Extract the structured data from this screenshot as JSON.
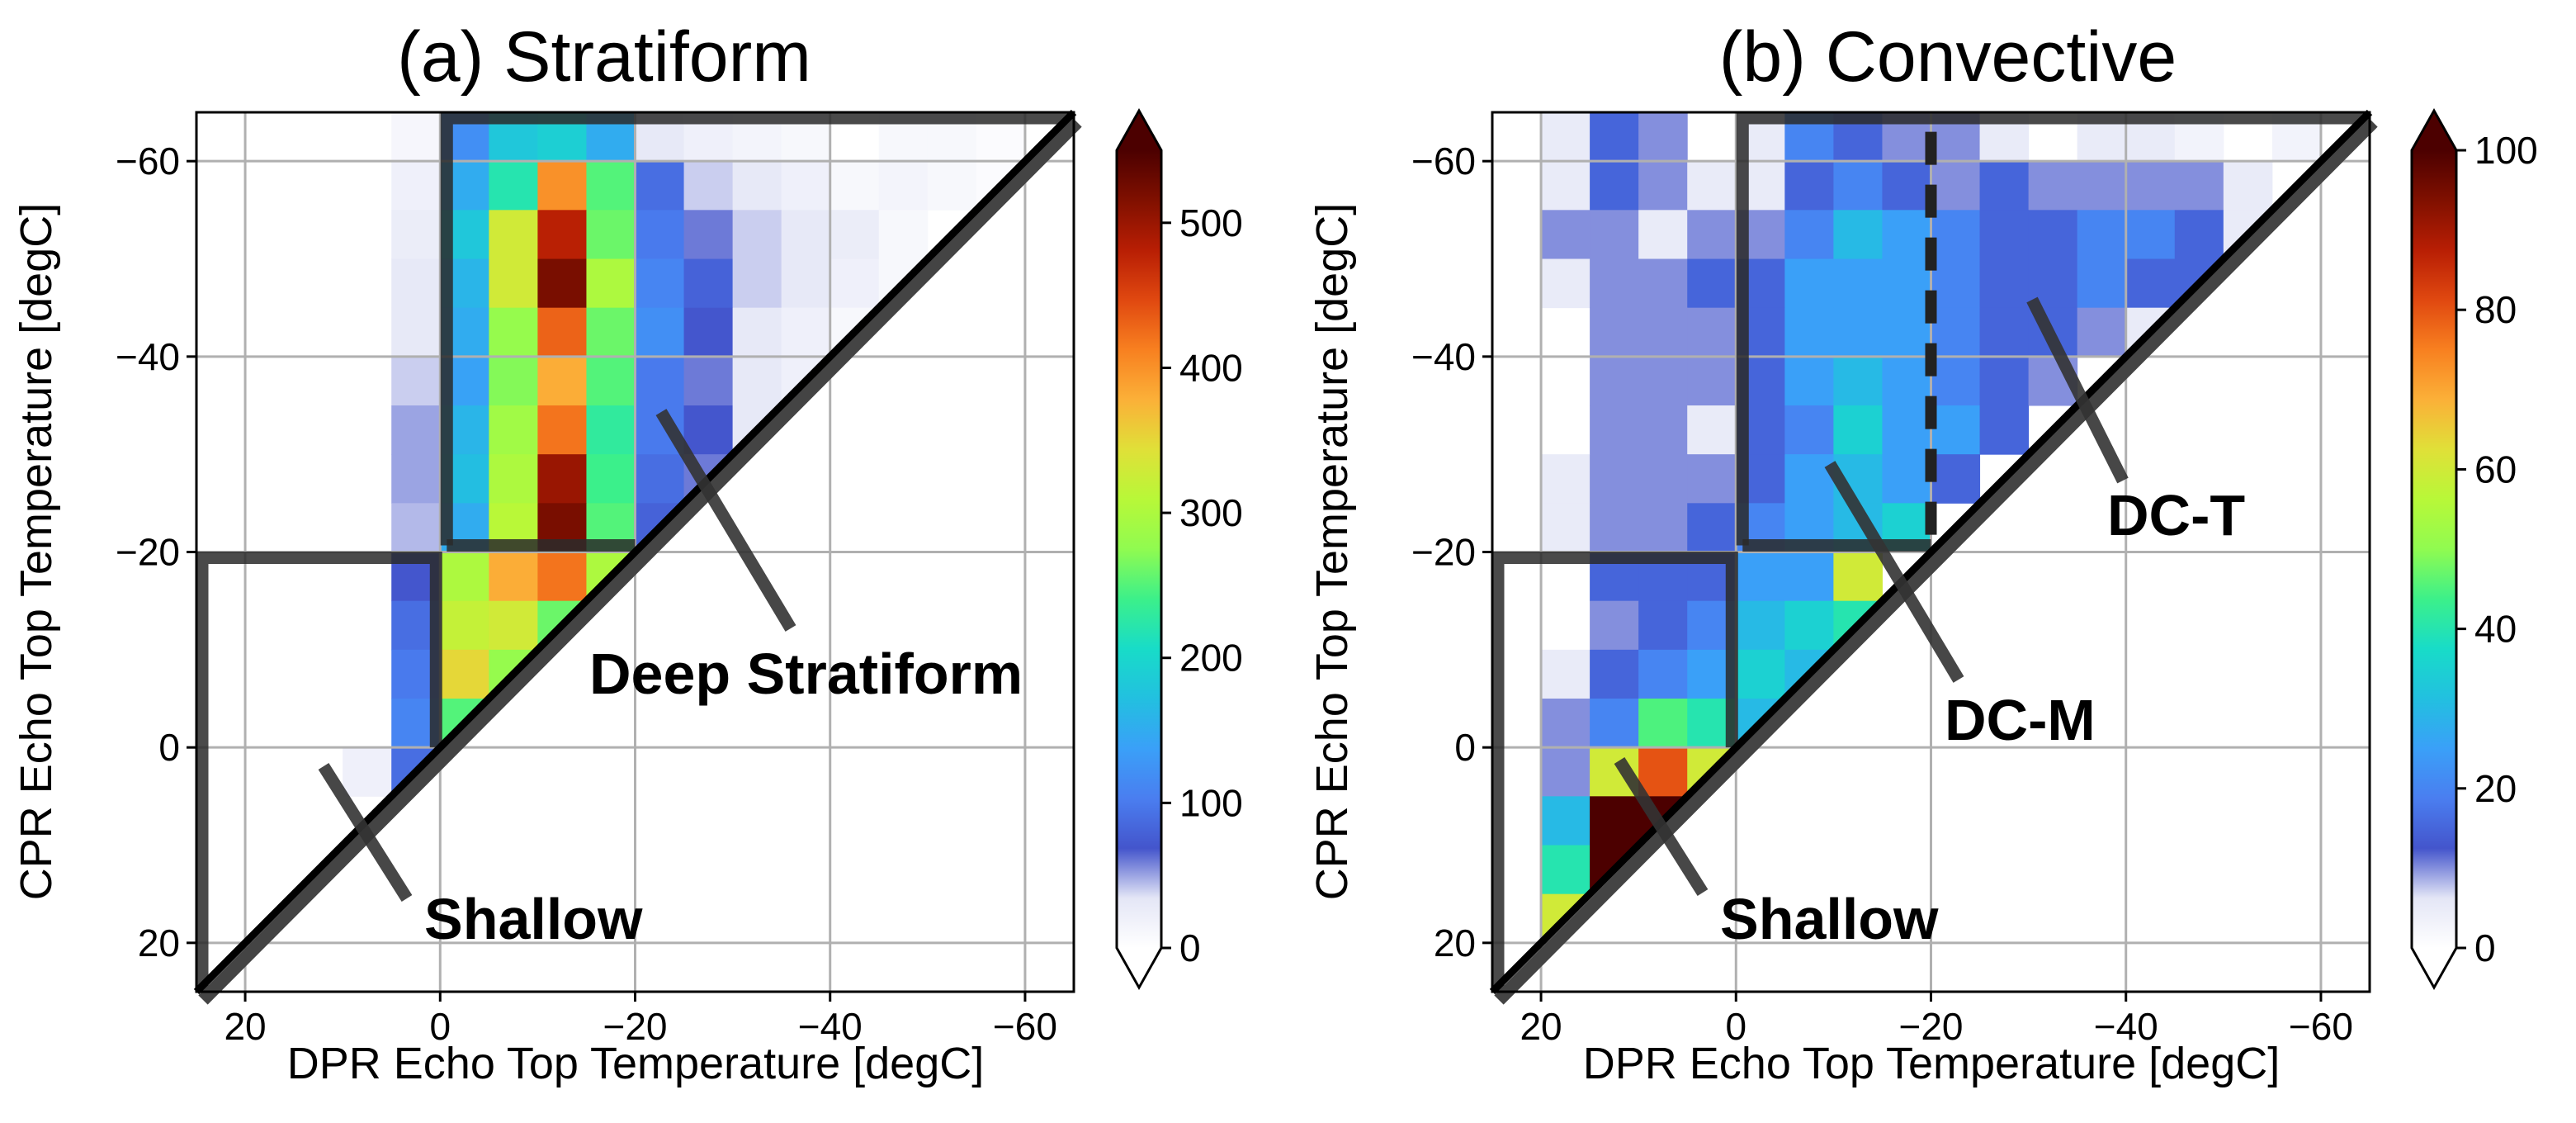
{
  "colormap": [
    "#ffffff",
    "#e4e6f6",
    "#4455cc",
    "#4a7ef0",
    "#3aa0f8",
    "#22c0e0",
    "#18dcc8",
    "#3cf08a",
    "#90fb50",
    "#b8f838",
    "#e0e038",
    "#fbb038",
    "#f88020",
    "#e04810",
    "#b81e04",
    "#801000",
    "#4c0000"
  ],
  "chart_data": [
    {
      "type": "heatmap",
      "title": "(a) Stratiform",
      "xlabel": "DPR Echo Top Temperature [degC]",
      "ylabel": "CPR Echo Top Temperature [degC]",
      "xlim": [
        25,
        -65
      ],
      "ylim": [
        25,
        -65
      ],
      "grid": true,
      "xticks": [
        20,
        0,
        -20,
        -40,
        -60
      ],
      "xtick_labels": [
        "20",
        "0",
        "−20",
        "−40",
        "−60"
      ],
      "yticks": [
        -60,
        -40,
        -20,
        0,
        20
      ],
      "ytick_labels": [
        "−60",
        "−40",
        "−20",
        "0",
        "20"
      ],
      "x_bin_edges": [
        25,
        20,
        15,
        10,
        5,
        0,
        -5,
        -10,
        -15,
        -20,
        -25,
        -30,
        -35,
        -40,
        -45,
        -50,
        -55,
        -60,
        -65
      ],
      "y_bin_edges": [
        -65,
        -60,
        -55,
        -50,
        -45,
        -40,
        -35,
        -30,
        -25,
        -20,
        -15,
        -10,
        -5,
        0,
        5,
        10,
        15,
        20,
        25
      ],
      "values": [
        [
          0,
          0,
          0,
          0,
          12,
          120,
          180,
          190,
          150,
          30,
          20,
          15,
          10,
          0,
          10,
          10,
          5,
          0
        ],
        [
          0,
          0,
          0,
          0,
          20,
          150,
          220,
          400,
          250,
          90,
          40,
          30,
          20,
          10,
          15,
          10,
          5,
          0
        ],
        [
          0,
          0,
          0,
          0,
          25,
          180,
          330,
          480,
          260,
          100,
          60,
          40,
          30,
          25,
          10,
          0,
          0,
          0
        ],
        [
          0,
          0,
          0,
          0,
          30,
          160,
          330,
          520,
          300,
          110,
          80,
          40,
          30,
          20,
          10,
          0,
          0,
          0
        ],
        [
          0,
          0,
          0,
          0,
          30,
          150,
          280,
          430,
          260,
          120,
          70,
          30,
          20,
          10,
          0,
          0,
          0,
          0
        ],
        [
          0,
          0,
          0,
          0,
          40,
          140,
          270,
          380,
          250,
          100,
          60,
          30,
          20,
          0,
          0,
          0,
          0,
          0
        ],
        [
          0,
          0,
          0,
          0,
          50,
          160,
          290,
          420,
          230,
          100,
          70,
          30,
          0,
          0,
          0,
          0,
          0,
          0
        ],
        [
          0,
          0,
          0,
          0,
          50,
          170,
          300,
          500,
          240,
          90,
          60,
          0,
          0,
          0,
          0,
          0,
          0,
          0
        ],
        [
          0,
          0,
          0,
          0,
          45,
          150,
          310,
          520,
          250,
          80,
          0,
          0,
          0,
          0,
          0,
          0,
          0,
          0
        ],
        [
          0,
          0,
          0,
          0,
          70,
          300,
          380,
          420,
          300,
          0,
          0,
          0,
          0,
          0,
          0,
          0,
          0,
          0
        ],
        [
          0,
          0,
          0,
          0,
          90,
          320,
          330,
          260,
          0,
          0,
          0,
          0,
          0,
          0,
          0,
          0,
          0,
          0
        ],
        [
          0,
          0,
          0,
          0,
          100,
          350,
          280,
          0,
          0,
          0,
          0,
          0,
          0,
          0,
          0,
          0,
          0,
          0
        ],
        [
          0,
          0,
          0,
          0,
          110,
          250,
          0,
          0,
          0,
          0,
          0,
          0,
          0,
          0,
          0,
          0,
          0,
          0
        ],
        [
          0,
          0,
          0,
          20,
          90,
          0,
          0,
          0,
          0,
          0,
          0,
          0,
          0,
          0,
          0,
          0,
          0,
          0
        ],
        [
          0,
          0,
          0,
          0,
          0,
          0,
          0,
          0,
          0,
          0,
          0,
          0,
          0,
          0,
          0,
          0,
          0,
          0
        ],
        [
          0,
          0,
          0,
          0,
          0,
          0,
          0,
          0,
          0,
          0,
          0,
          0,
          0,
          0,
          0,
          0,
          0,
          0
        ],
        [
          0,
          0,
          0,
          0,
          0,
          0,
          0,
          0,
          0,
          0,
          0,
          0,
          0,
          0,
          0,
          0,
          0,
          0
        ],
        [
          0,
          0,
          0,
          0,
          0,
          0,
          0,
          0,
          0,
          0,
          0,
          0,
          0,
          0,
          0,
          0,
          0,
          0
        ]
      ],
      "colorbar": {
        "vmin": 0,
        "vmax": 550,
        "extend": "both",
        "ticks": [
          0,
          100,
          200,
          300,
          400,
          500
        ],
        "tick_labels": [
          "0",
          "100",
          "200",
          "300",
          "400",
          "500"
        ]
      },
      "regions": {
        "deep_threshold": -20,
        "freezing_level": 0
      },
      "annotations": [
        "Deep Stratiform",
        "Shallow"
      ]
    },
    {
      "type": "heatmap",
      "title": "(b) Convective",
      "xlabel": "DPR Echo Top Temperature [degC]",
      "ylabel": "CPR Echo Top Temperature [degC]",
      "xlim": [
        25,
        -65
      ],
      "ylim": [
        25,
        -65
      ],
      "grid": true,
      "xticks": [
        20,
        0,
        -20,
        -40,
        -60
      ],
      "xtick_labels": [
        "20",
        "0",
        "−20",
        "−40",
        "−60"
      ],
      "yticks": [
        -60,
        -40,
        -20,
        0,
        20
      ],
      "ytick_labels": [
        "−60",
        "−40",
        "−20",
        "0",
        "20"
      ],
      "x_bin_edges": [
        25,
        20,
        15,
        10,
        5,
        0,
        -5,
        -10,
        -15,
        -20,
        -25,
        -30,
        -35,
        -40,
        -45,
        -50,
        -55,
        -60,
        -65
      ],
      "y_bin_edges": [
        -65,
        -60,
        -55,
        -50,
        -45,
        -40,
        -35,
        -30,
        -25,
        -20,
        -15,
        -10,
        -5,
        0,
        5,
        10,
        15,
        20,
        25
      ],
      "values": [
        [
          0,
          5,
          15,
          10,
          0,
          5,
          20,
          15,
          10,
          10,
          5,
          0,
          5,
          5,
          3,
          0,
          3,
          0
        ],
        [
          0,
          5,
          15,
          10,
          5,
          5,
          15,
          20,
          15,
          10,
          15,
          10,
          10,
          10,
          10,
          5,
          0,
          0
        ],
        [
          0,
          10,
          10,
          5,
          10,
          10,
          20,
          30,
          25,
          20,
          15,
          15,
          20,
          20,
          15,
          5,
          0,
          0
        ],
        [
          0,
          5,
          10,
          10,
          15,
          15,
          25,
          25,
          25,
          20,
          15,
          15,
          20,
          15,
          15,
          0,
          0,
          0
        ],
        [
          0,
          0,
          10,
          10,
          10,
          15,
          25,
          25,
          25,
          20,
          15,
          15,
          10,
          5,
          0,
          0,
          0,
          0
        ],
        [
          0,
          0,
          10,
          10,
          10,
          15,
          25,
          30,
          25,
          20,
          15,
          10,
          0,
          0,
          0,
          0,
          0,
          0
        ],
        [
          0,
          0,
          10,
          10,
          5,
          15,
          20,
          35,
          25,
          25,
          15,
          0,
          0,
          0,
          0,
          0,
          0,
          0
        ],
        [
          0,
          5,
          10,
          10,
          10,
          15,
          25,
          30,
          25,
          15,
          0,
          0,
          0,
          0,
          0,
          0,
          0,
          0
        ],
        [
          0,
          5,
          10,
          10,
          15,
          20,
          25,
          30,
          35,
          0,
          0,
          0,
          0,
          0,
          0,
          0,
          0,
          0
        ],
        [
          0,
          0,
          15,
          15,
          15,
          25,
          25,
          60,
          0,
          0,
          0,
          0,
          0,
          0,
          0,
          0,
          0,
          0
        ],
        [
          0,
          0,
          10,
          15,
          20,
          30,
          35,
          40,
          0,
          0,
          0,
          0,
          0,
          0,
          0,
          0,
          0,
          0
        ],
        [
          0,
          5,
          15,
          20,
          25,
          35,
          30,
          0,
          0,
          0,
          0,
          0,
          0,
          0,
          0,
          0,
          0,
          0
        ],
        [
          0,
          10,
          20,
          45,
          40,
          30,
          0,
          0,
          0,
          0,
          0,
          0,
          0,
          0,
          0,
          0,
          0,
          0
        ],
        [
          0,
          10,
          60,
          80,
          60,
          0,
          0,
          0,
          0,
          0,
          0,
          0,
          0,
          0,
          0,
          0,
          0,
          0
        ],
        [
          0,
          30,
          100,
          100,
          0,
          0,
          0,
          0,
          0,
          0,
          0,
          0,
          0,
          0,
          0,
          0,
          0,
          0
        ],
        [
          0,
          40,
          100,
          0,
          0,
          0,
          0,
          0,
          0,
          0,
          0,
          0,
          0,
          0,
          0,
          0,
          0,
          0
        ],
        [
          0,
          60,
          0,
          0,
          0,
          0,
          0,
          0,
          0,
          0,
          0,
          0,
          0,
          0,
          0,
          0,
          0,
          0
        ],
        [
          0,
          0,
          0,
          0,
          0,
          0,
          0,
          0,
          0,
          0,
          0,
          0,
          0,
          0,
          0,
          0,
          0,
          0
        ]
      ],
      "colorbar": {
        "vmin": 0,
        "vmax": 100,
        "extend": "both",
        "ticks": [
          0,
          20,
          40,
          60,
          80,
          100
        ],
        "tick_labels": [
          "0",
          "20",
          "40",
          "60",
          "80",
          "100"
        ]
      },
      "regions": {
        "deep_threshold": -20,
        "freezing_level": 0,
        "dashed_divider": -20
      },
      "annotations": [
        "DC-T",
        "DC-M",
        "Shallow"
      ]
    }
  ]
}
